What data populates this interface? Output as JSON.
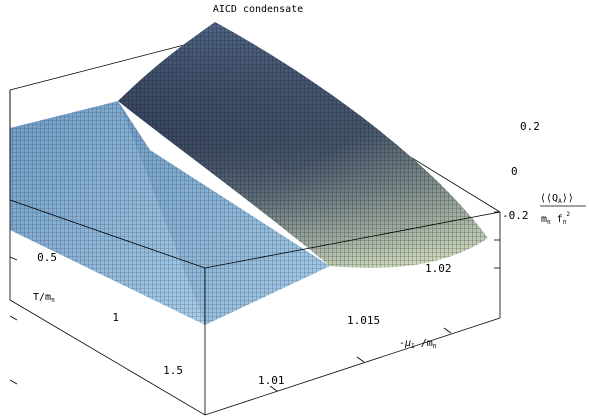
{
  "chart_data": {
    "type": "surface3d",
    "title": "AICD condensate",
    "x_axis": {
      "label": "-μ_I/m_π",
      "label_parts": {
        "sign": "-",
        "mu": "μ",
        "mu_sub": "I",
        "slash": " /m",
        "m_sub": "π"
      },
      "ticks": [
        "1.01",
        "1.015",
        "1.02"
      ],
      "tick_values": [
        1.01,
        1.015,
        1.02
      ],
      "range": [
        1.005,
        1.0225
      ]
    },
    "y_axis": {
      "label": "T/m_π",
      "label_parts": {
        "main": "T/m",
        "sub": "π"
      },
      "ticks": [
        "0.5",
        "1",
        "1.5"
      ],
      "tick_values": [
        0.5,
        1.0,
        1.5
      ],
      "range": [
        0.2,
        1.7
      ]
    },
    "z_axis": {
      "label": "⟨⟨Q_A⟩⟩ / (m_π f_π^2)",
      "numerator": {
        "open": "⟨⟨Q",
        "sub": "A",
        "close": "⟩⟩"
      },
      "denominator": {
        "m": "m",
        "m_sub": "π",
        "f": " f",
        "f_sub": "π",
        "sup": "2"
      },
      "ticks": [
        "0.2",
        "0",
        "-0.2"
      ],
      "tick_values": [
        0.2,
        0.0,
        -0.2
      ],
      "range": [
        -0.3,
        0.3
      ]
    },
    "surface": {
      "description_rule": "condensate is zero for -mu_I/m_pi below a T-dependent critical value and becomes negative above it",
      "critical_mu_at_T": {
        "T": [
          0.2,
          1.7
        ],
        "mu": [
          1.0078,
          1.0218
        ]
      },
      "min_value_at_max_mu_low_T": -0.3
    },
    "colors": {
      "flat_region": "#7faed6",
      "sloped_dark": "#27314a",
      "sloped_light": "#cfe0b8"
    },
    "grid": false,
    "legend": "none"
  }
}
